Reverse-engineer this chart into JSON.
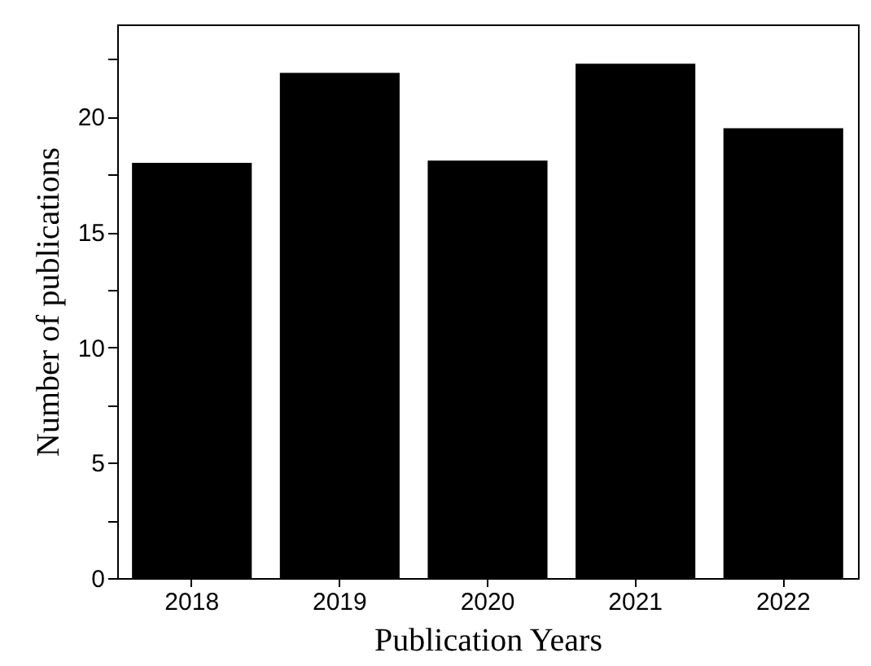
{
  "chart_data": {
    "type": "bar",
    "xlabel": "Publication Years",
    "ylabel": "Number of publications",
    "categories": [
      "2018",
      "2019",
      "2020",
      "2021",
      "2022"
    ],
    "values": [
      18,
      21.9,
      18.1,
      22.3,
      19.5
    ],
    "color": "#000000",
    "ylim": [
      0,
      24
    ],
    "yticks": [
      0,
      {
        "value": 2.5,
        "label": null
      },
      5,
      {
        "value": 7.5,
        "label": null
      },
      10,
      {
        "value": 12.5,
        "label": null
      },
      15,
      {
        "value": 17.5,
        "label": null
      },
      20,
      {
        "value": 22.5,
        "label": null
      }
    ],
    "grid": false
  }
}
